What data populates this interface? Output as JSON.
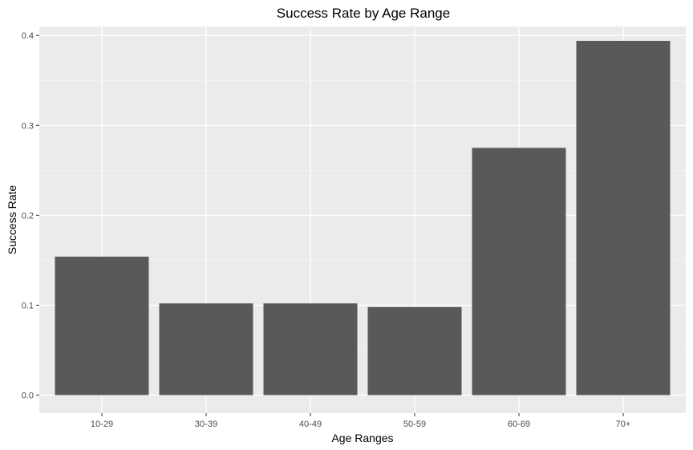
{
  "chart_data": {
    "type": "bar",
    "title": "Success Rate by Age Range",
    "xlabel": "Age Ranges",
    "ylabel": "Success Rate",
    "categories": [
      "10-29",
      "30-39",
      "40-49",
      "50-59",
      "60-69",
      "70+"
    ],
    "values": [
      0.154,
      0.102,
      0.102,
      0.098,
      0.275,
      0.394
    ],
    "ylim": [
      -0.02,
      0.41
    ],
    "yticks": [
      0.0,
      0.1,
      0.2,
      0.3,
      0.4
    ],
    "ytick_labels": [
      "0.0",
      "0.1",
      "0.2",
      "0.3",
      "0.4"
    ],
    "grid": true,
    "colors": {
      "bar": "#595959",
      "panel": "#ebebeb",
      "grid_major": "#ffffff",
      "grid_minor": "#f5f5f5",
      "tick": "#333333"
    }
  }
}
